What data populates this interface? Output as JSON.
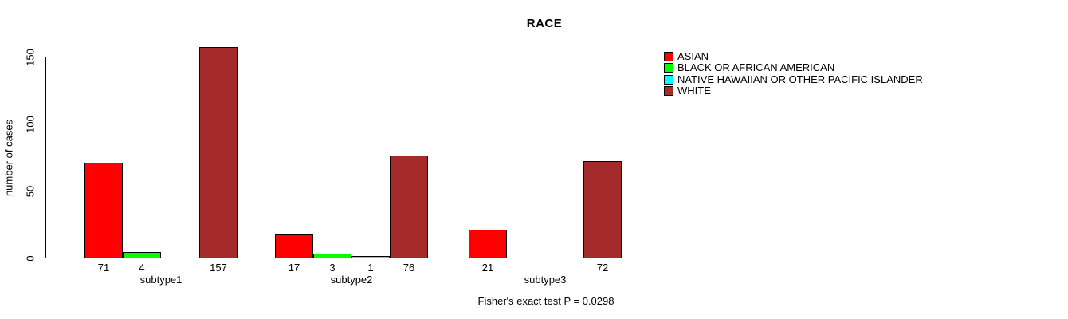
{
  "background_color": "#ffffff",
  "chart_data": {
    "type": "bar",
    "title": "RACE",
    "xlabel": "",
    "ylabel": "number of cases",
    "annotation": "Fisher's exact test P = 0.0298",
    "categories": [
      "subtype1",
      "subtype2",
      "subtype3"
    ],
    "series": [
      {
        "name": "ASIAN",
        "color": "#ff0000",
        "values": [
          71,
          17,
          21
        ]
      },
      {
        "name": "BLACK OR AFRICAN AMERICAN",
        "color": "#00ff00",
        "values": [
          4,
          3,
          0
        ]
      },
      {
        "name": "NATIVE HAWAIIAN OR OTHER PACIFIC ISLANDER",
        "color": "#00ffff",
        "values": [
          0,
          1,
          0
        ]
      },
      {
        "name": "WHITE",
        "color": "#a52a2a",
        "values": [
          157,
          76,
          72
        ]
      }
    ],
    "bar_labels": [
      [
        "71",
        "4",
        "",
        "157"
      ],
      [
        "17",
        "3",
        "1",
        "76"
      ],
      [
        "21",
        "",
        "",
        "72"
      ]
    ],
    "y_ticks": [
      0,
      50,
      100,
      150
    ],
    "ylim": [
      0,
      160
    ],
    "grid": false,
    "legend_position": "top-right",
    "bar_border_color": "#000000",
    "axis_color": "#000000"
  }
}
